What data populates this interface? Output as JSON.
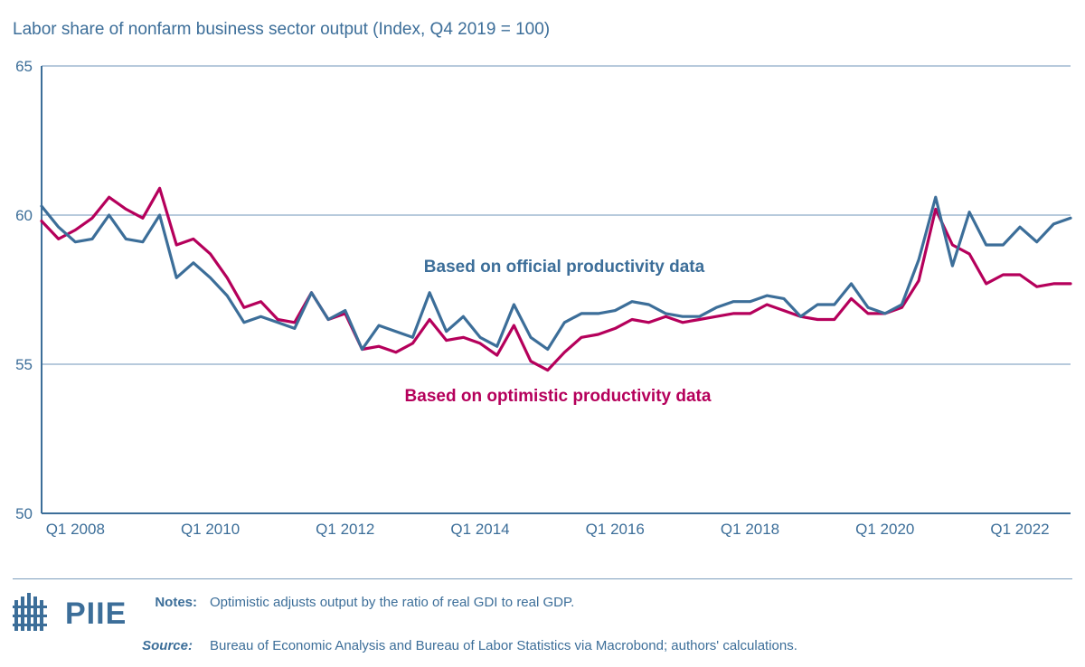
{
  "chart_data": {
    "type": "line",
    "title": "Labor share of nonfarm business sector output (Index, Q4 2019 = 100)",
    "xlabel": "",
    "ylabel": "",
    "ylim": [
      50,
      65
    ],
    "yticks": [
      50,
      55,
      60,
      65
    ],
    "xlim": [
      2007.5,
      2022.75
    ],
    "xticks": [
      {
        "x": 2008,
        "label": "Q1 2008"
      },
      {
        "x": 2010,
        "label": "Q1 2010"
      },
      {
        "x": 2012,
        "label": "Q1 2012"
      },
      {
        "x": 2014,
        "label": "Q1 2014"
      },
      {
        "x": 2016,
        "label": "Q1 2016"
      },
      {
        "x": 2018,
        "label": "Q1 2018"
      },
      {
        "x": 2020,
        "label": "Q1 2020"
      },
      {
        "x": 2022,
        "label": "Q1 2022"
      }
    ],
    "grid": true,
    "series": [
      {
        "name": "Based on official productivity data",
        "color": "#3c6e99",
        "values": [
          60.3,
          59.6,
          59.1,
          59.2,
          60.0,
          59.2,
          59.1,
          60.0,
          57.9,
          58.4,
          57.9,
          57.3,
          56.4,
          56.6,
          56.4,
          56.2,
          57.4,
          56.5,
          56.8,
          55.5,
          56.3,
          56.1,
          55.9,
          57.4,
          56.1,
          56.6,
          55.9,
          55.6,
          57.0,
          55.9,
          55.5,
          56.4,
          56.7,
          56.7,
          56.8,
          57.1,
          57.0,
          56.7,
          56.6,
          56.6,
          56.9,
          57.1,
          57.1,
          57.3,
          57.2,
          56.6,
          57.0,
          57.0,
          57.7,
          56.9,
          56.7,
          57.0,
          58.5,
          60.6,
          58.3,
          60.1,
          59.0,
          59.0,
          59.6,
          59.1,
          59.7,
          59.9
        ]
      },
      {
        "name": "Based on optimistic productivity data",
        "color": "#b5005b",
        "values": [
          59.8,
          59.2,
          59.5,
          59.9,
          60.6,
          60.2,
          59.9,
          60.9,
          59.0,
          59.2,
          58.7,
          57.9,
          56.9,
          57.1,
          56.5,
          56.4,
          57.4,
          56.5,
          56.7,
          55.5,
          55.6,
          55.4,
          55.7,
          56.5,
          55.8,
          55.9,
          55.7,
          55.3,
          56.3,
          55.1,
          54.8,
          55.4,
          55.9,
          56.0,
          56.2,
          56.5,
          56.4,
          56.6,
          56.4,
          56.5,
          56.6,
          56.7,
          56.7,
          57.0,
          56.8,
          56.6,
          56.5,
          56.5,
          57.2,
          56.7,
          56.7,
          56.9,
          57.8,
          60.2,
          59.0,
          58.7,
          57.7,
          58.0,
          58.0,
          57.6,
          57.7,
          57.7
        ]
      }
    ],
    "x_start": 2007.5,
    "x_step": 0.25,
    "annotations": [
      {
        "text": "Based on official productivity data",
        "series": 0
      },
      {
        "text": "Based on optimistic productivity data",
        "series": 1
      }
    ]
  },
  "footer": {
    "brand": "PIIE",
    "notes_label": "Notes:",
    "notes_text": "Optimistic adjusts output by the ratio of real GDI to real GDP.",
    "source_label": "Source:",
    "source_text": "Bureau of Economic Analysis and Bureau of Labor Statistics via Macrobond; authors' calculations."
  }
}
